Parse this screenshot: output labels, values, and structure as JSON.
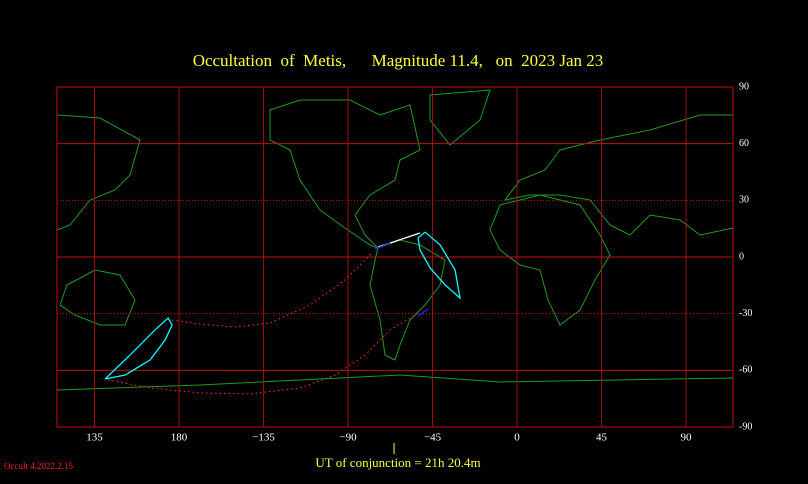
{
  "chart_data": {
    "type": "map",
    "title": "Occultation  of  Metis,      Magnitude 11.4,   on  2023 Jan 23",
    "footer": "UT of conjunction = 21h 20.4m",
    "version": "Occult 4.2022.2.15",
    "xlim": [
      -245,
      115
    ],
    "ylim": [
      -90,
      90
    ],
    "xticks": [
      {
        "value": -225,
        "label": "135"
      },
      {
        "value": -180,
        "label": "180"
      },
      {
        "value": -135,
        "label": "−135"
      },
      {
        "value": -90,
        "label": "−90"
      },
      {
        "value": -45,
        "label": "−45"
      },
      0,
      45,
      90
    ],
    "yticks": [
      90,
      60,
      30,
      0,
      -30,
      -60,
      -90
    ],
    "grid": true,
    "conjunction_x": -65.5,
    "series": [
      {
        "color": "#ffffff",
        "style": "solid",
        "x": [
          -74.0,
          -51.7
        ],
        "y": [
          5.3,
          12.7
        ]
      },
      {
        "color": "#00ffff",
        "style": "solid",
        "x": [
          -49.0,
          -41.0,
          -33.0,
          -30.4,
          -38.3,
          -46.3,
          -51.7,
          -52.7,
          -49.0
        ],
        "y": [
          13.2,
          6.4,
          -6.9,
          -21.7,
          -14.8,
          -5.8,
          3.7,
          10.1,
          13.2
        ]
      },
      {
        "color": "#00ffff",
        "style": "solid",
        "x": [
          -219.4,
          -206.1,
          -192.8,
          -185.8,
          -183.7,
          -187.4,
          -195.4,
          -208.7,
          -219.4
        ],
        "y": [
          -64.6,
          -51.9,
          -38.6,
          -32.3,
          -36.0,
          -43.9,
          -54.5,
          -62.5,
          -64.6
        ]
      },
      {
        "color": "#ff3030",
        "style": "dotted",
        "x": [
          -183.7,
          -168.8,
          -150.2,
          -131.5,
          -110.2,
          -91.6,
          -77.2
        ],
        "y": [
          -33.4,
          -35.5,
          -37.1,
          -34.9,
          -25.4,
          -12.2,
          2.1
        ]
      },
      {
        "color": "#ff3030",
        "style": "dotted",
        "x": [
          -217.8,
          -195.4,
          -168.8,
          -142.2,
          -115.5,
          -96.9,
          -80.9,
          -67.6,
          -51.7
        ],
        "y": [
          -65.1,
          -69.3,
          -72.0,
          -72.5,
          -69.3,
          -62.5,
          -51.9,
          -38.6,
          -29.1
        ]
      },
      {
        "color": "#2020ff",
        "style": "solid",
        "x": [
          -75.6,
          -67.6
        ],
        "y": [
          4.2,
          7.4
        ]
      },
      {
        "color": "#2020ff",
        "style": "solid",
        "x": [
          -52.7,
          -47.4
        ],
        "y": [
          -31.2,
          -27.5
        ]
      }
    ]
  }
}
